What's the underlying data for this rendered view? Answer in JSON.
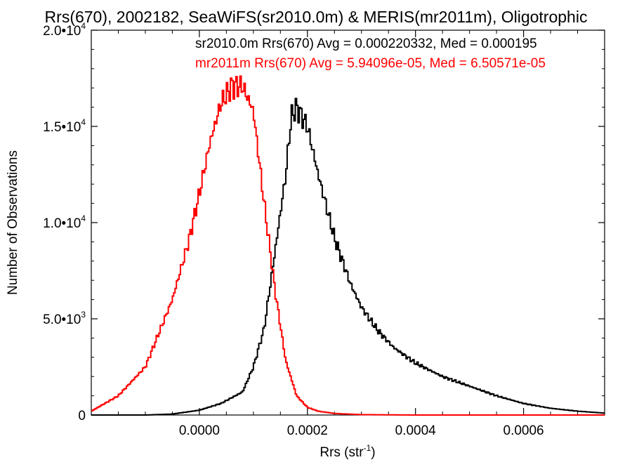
{
  "chart_data": {
    "type": "line",
    "title": "Rrs(670), 2002182, SeaWiFS(sr2010.0m) & MERIS(mr2011m), Oligotrophic",
    "xlabel": "Rrs (str",
    "xlabel_sup": "-1",
    "xlabel_end": ")",
    "ylabel": "Number of Observations",
    "xlim": [
      -0.0002,
      0.00075
    ],
    "ylim": [
      0,
      20000
    ],
    "x_ticks": [
      {
        "value": 0.0,
        "label": "0.0000"
      },
      {
        "value": 0.0002,
        "label": "0.0002"
      },
      {
        "value": 0.0004,
        "label": "0.0004"
      },
      {
        "value": 0.0006,
        "label": "0.0006"
      }
    ],
    "y_ticks": [
      {
        "value": 0,
        "label": "0",
        "exp": ""
      },
      {
        "value": 5000,
        "label": "5.0•10",
        "exp": "3"
      },
      {
        "value": 10000,
        "label": "1.0•10",
        "exp": "4"
      },
      {
        "value": 15000,
        "label": "1.5•10",
        "exp": "4"
      },
      {
        "value": 20000,
        "label": "2.0•10",
        "exp": "4"
      }
    ],
    "grid": false,
    "legend_position": "top-right",
    "series": [
      {
        "name": "sr2010.0m",
        "legend": "sr2010.0m Rrs(670) Avg = 0.000220332, Med = 0.000195",
        "color": "#000000",
        "x": [
          -0.0002,
          -0.0001,
          -5e-05,
          0.0,
          4e-05,
          8e-05,
          0.0001,
          0.00012,
          0.00014,
          0.00016,
          0.00017,
          0.00018,
          0.0002,
          0.00022,
          0.00025,
          0.00028,
          0.0003,
          0.00033,
          0.00036,
          0.0004,
          0.00045,
          0.0005,
          0.00055,
          0.0006,
          0.00065,
          0.0007,
          0.00075
        ],
        "y": [
          0,
          0,
          50,
          250,
          600,
          1200,
          2500,
          4500,
          8500,
          12500,
          15500,
          16000,
          15000,
          12500,
          9200,
          6800,
          5600,
          4400,
          3500,
          2700,
          2000,
          1500,
          1000,
          600,
          350,
          200,
          100
        ]
      },
      {
        "name": "mr2011m",
        "legend": "mr2011m Rrs(670) Avg = 5.94096e-05, Med = 6.50571e-05",
        "color": "#ff0000",
        "x": [
          -0.0002,
          -0.00015,
          -0.0001,
          -5e-05,
          -2e-05,
          0.0,
          2e-05,
          4e-05,
          6e-05,
          8e-05,
          0.0001,
          0.00012,
          0.00014,
          0.00016,
          0.00018,
          0.0002,
          0.00022,
          0.00025,
          0.0003,
          0.0004,
          0.0005,
          0.00075
        ],
        "y": [
          200,
          1000,
          2500,
          6000,
          9000,
          11500,
          14200,
          16200,
          17100,
          17100,
          15800,
          11000,
          6500,
          2800,
          1000,
          400,
          200,
          80,
          20,
          0,
          0,
          0
        ]
      }
    ]
  }
}
